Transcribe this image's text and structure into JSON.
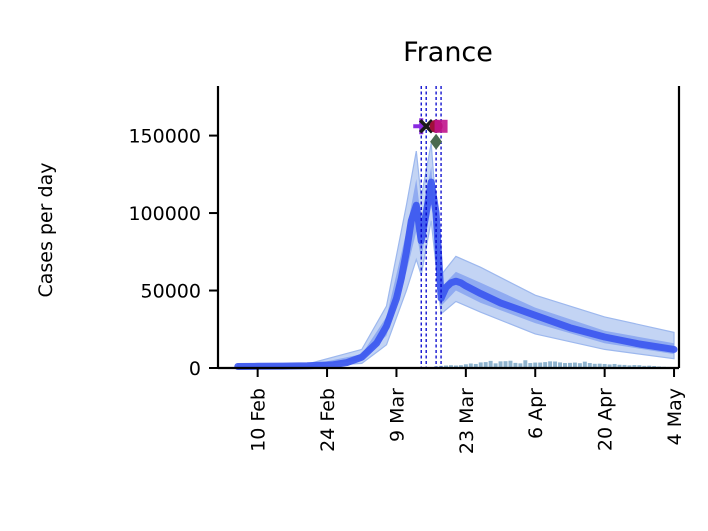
{
  "chart_data": {
    "type": "line",
    "title": "France",
    "xlabel": "",
    "ylabel": "Cases per day",
    "ylim": [
      0,
      182000
    ],
    "x_range": [
      "2020-02-02",
      "2020-05-05"
    ],
    "yticks": [
      0,
      50000,
      100000,
      150000
    ],
    "ytick_labels": [
      "0",
      "50000",
      "100000",
      "150000"
    ],
    "xticks": [
      "2020-02-10",
      "2020-02-24",
      "2020-03-09",
      "2020-03-23",
      "2020-04-06",
      "2020-04-20",
      "2020-05-04"
    ],
    "xtick_labels": [
      "10 Feb",
      "24 Feb",
      "9 Mar",
      "23 Mar",
      "6 Apr",
      "20 Apr",
      "4 May"
    ],
    "grid": false,
    "colors": {
      "median": "#3a55f0",
      "band_inner": "#7f9ef0",
      "band_outer": "#b8cdf2",
      "observed_bars": "#8fb4cf",
      "intervention_lines": "#0000cc"
    },
    "series": [
      {
        "kind": "median",
        "x": [
          "2020-02-06",
          "2020-02-10",
          "2020-02-15",
          "2020-02-20",
          "2020-02-25",
          "2020-02-28",
          "2020-03-02",
          "2020-03-05",
          "2020-03-07",
          "2020-03-09",
          "2020-03-10",
          "2020-03-11",
          "2020-03-12",
          "2020-03-13",
          "2020-03-14",
          "2020-03-15",
          "2020-03-16",
          "2020-03-17",
          "2020-03-18",
          "2020-03-19",
          "2020-03-20",
          "2020-03-21",
          "2020-03-22",
          "2020-03-23",
          "2020-03-26",
          "2020-03-30",
          "2020-04-06",
          "2020-04-13",
          "2020-04-20",
          "2020-04-27",
          "2020-05-04"
        ],
        "y": [
          1000,
          1100,
          1200,
          1400,
          2000,
          3500,
          7000,
          16000,
          27000,
          45000,
          58000,
          75000,
          95000,
          105000,
          82000,
          100000,
          120000,
          100000,
          45000,
          52000,
          55000,
          56000,
          55000,
          53000,
          48000,
          42000,
          34000,
          26000,
          20000,
          15500,
          12000
        ]
      },
      {
        "kind": "band_inner",
        "x": [
          "2020-02-06",
          "2020-02-20",
          "2020-03-02",
          "2020-03-07",
          "2020-03-11",
          "2020-03-13",
          "2020-03-14",
          "2020-03-16",
          "2020-03-18",
          "2020-03-21",
          "2020-03-26",
          "2020-04-06",
          "2020-04-20",
          "2020-05-04"
        ],
        "upper": [
          1500,
          1700,
          9000,
          33000,
          88000,
          122000,
          95000,
          130000,
          52000,
          62000,
          55000,
          39000,
          24000,
          16000
        ],
        "lower": [
          700,
          1100,
          5000,
          21000,
          62000,
          88000,
          70000,
          108000,
          40000,
          50000,
          42000,
          29000,
          16000,
          9000
        ]
      },
      {
        "kind": "band_outer",
        "x": [
          "2020-02-06",
          "2020-02-20",
          "2020-03-02",
          "2020-03-07",
          "2020-03-11",
          "2020-03-13",
          "2020-03-14",
          "2020-03-16",
          "2020-03-18",
          "2020-03-21",
          "2020-03-26",
          "2020-04-06",
          "2020-04-20",
          "2020-05-04"
        ],
        "upper": [
          2500,
          2500,
          12000,
          40000,
          105000,
          140000,
          110000,
          145000,
          60000,
          72000,
          65000,
          47000,
          33000,
          23000
        ],
        "lower": [
          500,
          800,
          3000,
          15000,
          50000,
          70000,
          60000,
          95000,
          35000,
          43000,
          36000,
          22000,
          12000,
          6000
        ]
      },
      {
        "kind": "observed",
        "x": [
          "2020-03-17",
          "2020-03-18",
          "2020-03-19",
          "2020-03-20",
          "2020-03-21",
          "2020-03-22",
          "2020-03-23",
          "2020-03-24",
          "2020-03-25",
          "2020-03-26",
          "2020-03-27",
          "2020-03-28",
          "2020-03-29",
          "2020-03-30",
          "2020-03-31",
          "2020-04-01",
          "2020-04-02",
          "2020-04-03",
          "2020-04-04",
          "2020-04-05",
          "2020-04-06",
          "2020-04-07",
          "2020-04-08",
          "2020-04-09",
          "2020-04-10",
          "2020-04-11",
          "2020-04-12",
          "2020-04-13",
          "2020-04-14",
          "2020-04-15",
          "2020-04-16",
          "2020-04-17",
          "2020-04-18",
          "2020-04-19",
          "2020-04-20",
          "2020-04-21",
          "2020-04-22",
          "2020-04-23",
          "2020-04-24",
          "2020-04-25",
          "2020-04-26",
          "2020-04-27",
          "2020-04-28",
          "2020-04-29",
          "2020-04-30",
          "2020-05-01",
          "2020-05-02",
          "2020-05-03",
          "2020-05-04"
        ],
        "y": [
          1100,
          1400,
          1600,
          1800,
          1600,
          1800,
          2400,
          2900,
          2600,
          3600,
          3800,
          4600,
          3000,
          4300,
          4400,
          4700,
          3300,
          3000,
          5000,
          3200,
          3500,
          3500,
          3800,
          4300,
          4200,
          3600,
          3200,
          3300,
          3500,
          3100,
          4100,
          3200,
          2700,
          2800,
          2600,
          2300,
          2600,
          2100,
          2000,
          1700,
          1900,
          1800,
          1400,
          1500,
          1300,
          1000,
          800,
          700,
          600
        ]
      }
    ],
    "intervention_dates": [
      "2020-03-14",
      "2020-03-15",
      "2020-03-17",
      "2020-03-18"
    ],
    "markers": [
      {
        "date": "2020-03-14",
        "y": 156000,
        "shape": "plus",
        "color": "#8a2be2"
      },
      {
        "date": "2020-03-15",
        "y": 156000,
        "shape": "x",
        "color": "#1a1a1a"
      },
      {
        "date": "2020-03-17",
        "y": 156000,
        "shape": "circle",
        "color": "#a0103a"
      },
      {
        "date": "2020-03-18",
        "y": 156000,
        "shape": "square",
        "color": "#c0148c"
      },
      {
        "date": "2020-03-17",
        "y": 146000,
        "shape": "diamond",
        "color": "#4a6a50"
      }
    ]
  }
}
